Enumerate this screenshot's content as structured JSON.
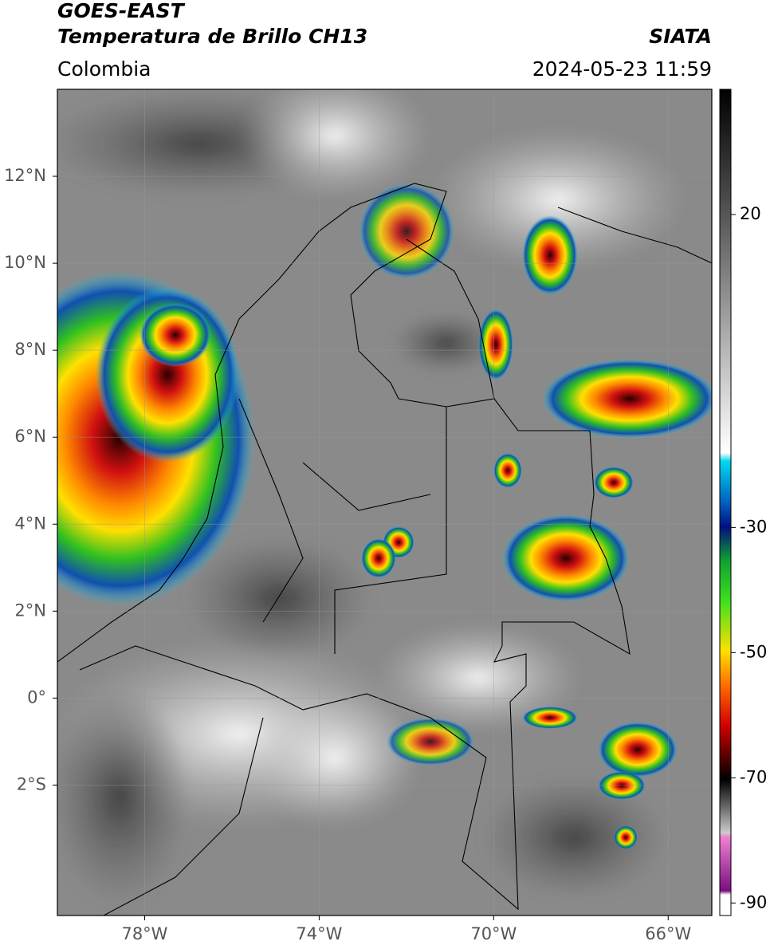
{
  "header": {
    "satellite": "GOES-EAST",
    "product": "Temperatura de Brillo CH13",
    "source": "SIATA",
    "region": "Colombia",
    "datetime": "2024-05-23 11:59"
  },
  "map": {
    "lonlim": [
      -80,
      -65
    ],
    "latlim": [
      -5,
      14
    ],
    "lon_ticks": [
      {
        "value": -78,
        "label": "78°W"
      },
      {
        "value": -74,
        "label": "74°W"
      },
      {
        "value": -70,
        "label": "70°W"
      },
      {
        "value": -66,
        "label": "66°W"
      }
    ],
    "lat_ticks": [
      {
        "value": 12,
        "label": "12°N"
      },
      {
        "value": 10,
        "label": "10°N"
      },
      {
        "value": 8,
        "label": "8°N"
      },
      {
        "value": 6,
        "label": "6°N"
      },
      {
        "value": 4,
        "label": "4°N"
      },
      {
        "value": 2,
        "label": "2°N"
      },
      {
        "value": 0,
        "label": "0°"
      },
      {
        "value": -2,
        "label": "2°S"
      }
    ]
  },
  "colorbar": {
    "lim": [
      -92,
      40
    ],
    "ticks": [
      20,
      -30,
      -50,
      -70,
      -90
    ]
  }
}
